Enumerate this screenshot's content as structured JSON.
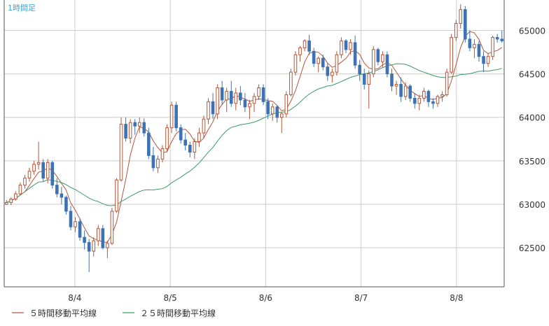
{
  "chart_data": {
    "type": "candlestick",
    "title": "1時間足",
    "x_ticks": [
      "8/4",
      "8/5",
      "8/6",
      "8/7",
      "8/8"
    ],
    "y_ticks": [
      62500,
      63000,
      63500,
      64000,
      64500,
      65000
    ],
    "ylim": [
      62050,
      65350
    ],
    "grid": true,
    "colors": {
      "up": "#b0563a",
      "down": "#3d72b5",
      "ma5": "#b0563a",
      "ma25": "#3a9a6a",
      "grid": "#cccccc",
      "axis": "#555555",
      "title": "#3aa6d8"
    },
    "ohlc": [
      [
        63000,
        63050,
        62990,
        63020
      ],
      [
        63020,
        63080,
        62990,
        63060
      ],
      [
        63060,
        63150,
        63040,
        63120
      ],
      [
        63120,
        63250,
        63100,
        63220
      ],
      [
        63220,
        63340,
        63180,
        63300
      ],
      [
        63300,
        63420,
        63260,
        63380
      ],
      [
        63380,
        63500,
        63340,
        63460
      ],
      [
        63460,
        63720,
        63400,
        63480
      ],
      [
        63480,
        63520,
        63260,
        63300
      ],
      [
        63300,
        63520,
        63240,
        63480
      ],
      [
        63480,
        63500,
        63180,
        63220
      ],
      [
        63220,
        63300,
        63080,
        63120
      ],
      [
        63120,
        63200,
        63000,
        63080
      ],
      [
        63080,
        63100,
        62880,
        62920
      ],
      [
        62920,
        62980,
        62700,
        62740
      ],
      [
        62740,
        62850,
        62680,
        62800
      ],
      [
        62800,
        62840,
        62580,
        62620
      ],
      [
        62620,
        62700,
        62480,
        62560
      ],
      [
        62560,
        62600,
        62220,
        62460
      ],
      [
        62460,
        62620,
        62400,
        62580
      ],
      [
        62580,
        62760,
        62520,
        62720
      ],
      [
        62720,
        62760,
        62480,
        62500
      ],
      [
        62500,
        62580,
        62380,
        62550
      ],
      [
        62550,
        62960,
        62530,
        62920
      ],
      [
        62920,
        63300,
        62900,
        63280
      ],
      [
        63280,
        64000,
        63260,
        63920
      ],
      [
        63920,
        64000,
        63720,
        63760
      ],
      [
        63760,
        63980,
        63700,
        63940
      ],
      [
        63940,
        63980,
        63800,
        63900
      ],
      [
        63900,
        64000,
        63820,
        63940
      ],
      [
        63940,
        63990,
        63780,
        63820
      ],
      [
        63820,
        63880,
        63520,
        63560
      ],
      [
        63560,
        63660,
        63380,
        63420
      ],
      [
        63420,
        63560,
        63360,
        63520
      ],
      [
        63520,
        63680,
        63480,
        63640
      ],
      [
        63640,
        63920,
        63600,
        63880
      ],
      [
        63880,
        64180,
        63820,
        64140
      ],
      [
        64140,
        64180,
        63840,
        63880
      ],
      [
        63880,
        63920,
        63700,
        63740
      ],
      [
        63740,
        63820,
        63620,
        63680
      ],
      [
        63680,
        63720,
        63540,
        63600
      ],
      [
        63600,
        63760,
        63520,
        63720
      ],
      [
        63720,
        63880,
        63660,
        63820
      ],
      [
        63820,
        64020,
        63760,
        63980
      ],
      [
        63980,
        64220,
        63920,
        64180
      ],
      [
        64180,
        64280,
        63980,
        64040
      ],
      [
        64040,
        64380,
        63980,
        64340
      ],
      [
        64340,
        64420,
        64140,
        64200
      ],
      [
        64200,
        64340,
        64060,
        64300
      ],
      [
        64300,
        64420,
        64120,
        64160
      ],
      [
        64160,
        64340,
        64080,
        64280
      ],
      [
        64280,
        64360,
        64140,
        64200
      ],
      [
        64200,
        64280,
        64060,
        64120
      ],
      [
        64120,
        64200,
        63980,
        64160
      ],
      [
        64160,
        64280,
        64060,
        64240
      ],
      [
        64240,
        64380,
        64200,
        64340
      ],
      [
        64340,
        64380,
        64140,
        64180
      ],
      [
        64180,
        64220,
        63980,
        64040
      ],
      [
        64040,
        64160,
        63960,
        64120
      ],
      [
        64120,
        64140,
        63940,
        64000
      ],
      [
        64000,
        64060,
        63820,
        64040
      ],
      [
        64040,
        64300,
        64000,
        64260
      ],
      [
        64260,
        64560,
        64240,
        64520
      ],
      [
        64520,
        64760,
        64480,
        64720
      ],
      [
        64720,
        64820,
        64640,
        64800
      ],
      [
        64800,
        64900,
        64760,
        64880
      ],
      [
        64880,
        64950,
        64720,
        64760
      ],
      [
        64760,
        64800,
        64580,
        64620
      ],
      [
        64620,
        64700,
        64520,
        64680
      ],
      [
        64680,
        64720,
        64540,
        64580
      ],
      [
        64580,
        64620,
        64420,
        64480
      ],
      [
        64480,
        64560,
        64400,
        64520
      ],
      [
        64520,
        64760,
        64480,
        64720
      ],
      [
        64720,
        64920,
        64680,
        64880
      ],
      [
        64880,
        64900,
        64740,
        64780
      ],
      [
        64780,
        64900,
        64720,
        64860
      ],
      [
        64860,
        64940,
        64560,
        64600
      ],
      [
        64600,
        64660,
        64420,
        64500
      ],
      [
        64500,
        64560,
        64320,
        64380
      ],
      [
        64380,
        64540,
        64100,
        64500
      ],
      [
        64500,
        64820,
        64460,
        64780
      ],
      [
        64780,
        64800,
        64600,
        64640
      ],
      [
        64640,
        64760,
        64580,
        64720
      ],
      [
        64720,
        64760,
        64460,
        64500
      ],
      [
        64500,
        64560,
        64300,
        64360
      ],
      [
        64360,
        64420,
        64260,
        64380
      ],
      [
        64380,
        64460,
        64180,
        64240
      ],
      [
        64240,
        64400,
        64200,
        64360
      ],
      [
        64360,
        64380,
        64180,
        64220
      ],
      [
        64220,
        64280,
        64100,
        64160
      ],
      [
        64160,
        64260,
        64080,
        64220
      ],
      [
        64220,
        64340,
        64180,
        64300
      ],
      [
        64300,
        64320,
        64120,
        64180
      ],
      [
        64180,
        64220,
        64100,
        64160
      ],
      [
        64160,
        64260,
        64120,
        64240
      ],
      [
        64240,
        64300,
        64180,
        64260
      ],
      [
        64260,
        64560,
        64240,
        64520
      ],
      [
        64520,
        64960,
        64500,
        64920
      ],
      [
        64920,
        65120,
        64880,
        65080
      ],
      [
        65080,
        65300,
        65020,
        65240
      ],
      [
        65240,
        65280,
        64860,
        64900
      ],
      [
        64900,
        65000,
        64760,
        64800
      ],
      [
        64800,
        64900,
        64680,
        64840
      ],
      [
        64840,
        64880,
        64640,
        64700
      ],
      [
        64700,
        64760,
        64520,
        64620
      ],
      [
        64620,
        64740,
        64580,
        64700
      ],
      [
        64700,
        64940,
        64660,
        64920
      ],
      [
        64920,
        64960,
        64860,
        64900
      ],
      [
        64900,
        65000,
        64860,
        64880
      ]
    ],
    "series": [
      {
        "name": "５時間移動平均線",
        "type": "ma",
        "period": 5,
        "color": "#b0563a"
      },
      {
        "name": "２５時間移動平均線",
        "type": "ma",
        "period": 25,
        "color": "#3a9a6a"
      }
    ]
  }
}
